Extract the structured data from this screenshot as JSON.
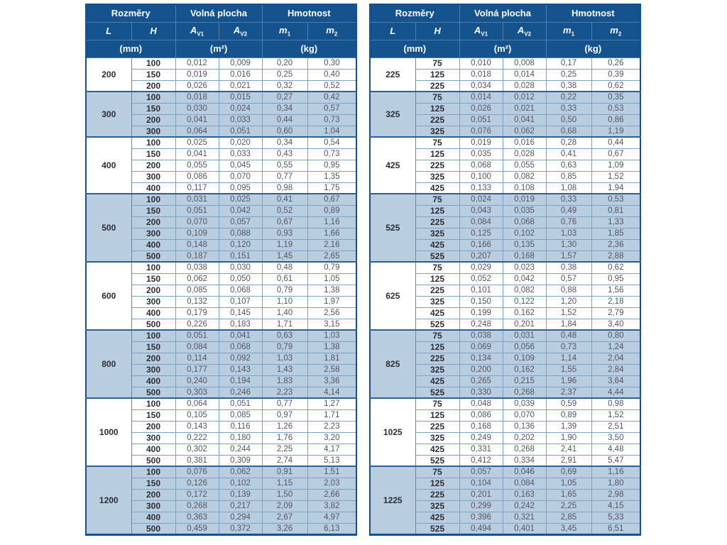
{
  "colors": {
    "header_bg": "#14538e",
    "header_text": "#ffffff",
    "row_blue": "#b9cde0",
    "row_white": "#ffffff",
    "grid_line": "#7da1c3",
    "frame": "#14528d"
  },
  "headers": {
    "rozmery": "Rozměry",
    "volna_plocha": "Volná plocha",
    "hmotnost": "Hmotnost",
    "col_l": "L",
    "col_h": "H",
    "col_av1": {
      "base": "A",
      "sub": "V1"
    },
    "col_av2": {
      "base": "A",
      "sub": "V2"
    },
    "col_m1": {
      "base": "m",
      "sub": "1"
    },
    "col_m2": {
      "base": "m",
      "sub": "2"
    },
    "unit_mm": "(mm)",
    "unit_m2": "(m²)",
    "unit_kg": "(kg)"
  },
  "tables": [
    {
      "groups": [
        {
          "L": "200",
          "rows": [
            {
              "H": "100",
              "av1": "0,012",
              "av2": "0,009",
              "m1": "0,20",
              "m2": "0,30"
            },
            {
              "H": "150",
              "av1": "0,019",
              "av2": "0,016",
              "m1": "0,25",
              "m2": "0,40"
            },
            {
              "H": "200",
              "av1": "0,026",
              "av2": "0,021",
              "m1": "0,32",
              "m2": "0,52"
            }
          ]
        },
        {
          "L": "300",
          "rows": [
            {
              "H": "100",
              "av1": "0,018",
              "av2": "0,015",
              "m1": "0,27",
              "m2": "0,42"
            },
            {
              "H": "150",
              "av1": "0,030",
              "av2": "0,024",
              "m1": "0,34",
              "m2": "0,57"
            },
            {
              "H": "200",
              "av1": "0,041",
              "av2": "0,033",
              "m1": "0,44",
              "m2": "0,73"
            },
            {
              "H": "300",
              "av1": "0,064",
              "av2": "0,051",
              "m1": "0,60",
              "m2": "1,04"
            }
          ]
        },
        {
          "L": "400",
          "rows": [
            {
              "H": "100",
              "av1": "0,025",
              "av2": "0,020",
              "m1": "0,34",
              "m2": "0,54"
            },
            {
              "H": "150",
              "av1": "0,041",
              "av2": "0,033",
              "m1": "0,43",
              "m2": "0,73"
            },
            {
              "H": "200",
              "av1": "0,055",
              "av2": "0,045",
              "m1": "0,55",
              "m2": "0,95"
            },
            {
              "H": "300",
              "av1": "0,086",
              "av2": "0,070",
              "m1": "0,77",
              "m2": "1,35"
            },
            {
              "H": "400",
              "av1": "0,117",
              "av2": "0,095",
              "m1": "0,98",
              "m2": "1,75"
            }
          ]
        },
        {
          "L": "500",
          "rows": [
            {
              "H": "100",
              "av1": "0,031",
              "av2": "0,025",
              "m1": "0,41",
              "m2": "0,67"
            },
            {
              "H": "150",
              "av1": "0,051",
              "av2": "0,042",
              "m1": "0,52",
              "m2": "0,89"
            },
            {
              "H": "200",
              "av1": "0,070",
              "av2": "0,057",
              "m1": "0,67",
              "m2": "1,16"
            },
            {
              "H": "300",
              "av1": "0,109",
              "av2": "0,088",
              "m1": "0,93",
              "m2": "1,66"
            },
            {
              "H": "400",
              "av1": "0,148",
              "av2": "0,120",
              "m1": "1,19",
              "m2": "2,16"
            },
            {
              "H": "500",
              "av1": "0,187",
              "av2": "0,151",
              "m1": "1,45",
              "m2": "2,65"
            }
          ]
        },
        {
          "L": "600",
          "rows": [
            {
              "H": "100",
              "av1": "0,038",
              "av2": "0,030",
              "m1": "0,48",
              "m2": "0,79"
            },
            {
              "H": "150",
              "av1": "0,062",
              "av2": "0,050",
              "m1": "0,61",
              "m2": "1,05"
            },
            {
              "H": "200",
              "av1": "0,085",
              "av2": "0,068",
              "m1": "0,79",
              "m2": "1,38"
            },
            {
              "H": "300",
              "av1": "0,132",
              "av2": "0,107",
              "m1": "1,10",
              "m2": "1,97"
            },
            {
              "H": "400",
              "av1": "0,179",
              "av2": "0,145",
              "m1": "1,40",
              "m2": "2,56"
            },
            {
              "H": "500",
              "av1": "0,226",
              "av2": "0,183",
              "m1": "1,71",
              "m2": "3,15"
            }
          ]
        },
        {
          "L": "800",
          "rows": [
            {
              "H": "100",
              "av1": "0,051",
              "av2": "0,041",
              "m1": "0,63",
              "m2": "1,03"
            },
            {
              "H": "150",
              "av1": "0,084",
              "av2": "0,068",
              "m1": "0,79",
              "m2": "1,38"
            },
            {
              "H": "200",
              "av1": "0,114",
              "av2": "0,092",
              "m1": "1,03",
              "m2": "1,81"
            },
            {
              "H": "300",
              "av1": "0,177",
              "av2": "0,143",
              "m1": "1,43",
              "m2": "2,58"
            },
            {
              "H": "400",
              "av1": "0,240",
              "av2": "0,194",
              "m1": "1,83",
              "m2": "3,36"
            },
            {
              "H": "500",
              "av1": "0,303",
              "av2": "0,246",
              "m1": "2,23",
              "m2": "4,14"
            }
          ]
        },
        {
          "L": "1000",
          "rows": [
            {
              "H": "100",
              "av1": "0,064",
              "av2": "0,051",
              "m1": "0,77",
              "m2": "1,27"
            },
            {
              "H": "150",
              "av1": "0,105",
              "av2": "0,085",
              "m1": "0,97",
              "m2": "1,71"
            },
            {
              "H": "200",
              "av1": "0,143",
              "av2": "0,116",
              "m1": "1,26",
              "m2": "2,23"
            },
            {
              "H": "300",
              "av1": "0,222",
              "av2": "0,180",
              "m1": "1,76",
              "m2": "3,20"
            },
            {
              "H": "400",
              "av1": "0,302",
              "av2": "0,244",
              "m1": "2,25",
              "m2": "4,17"
            },
            {
              "H": "500",
              "av1": "0,381",
              "av2": "0,309",
              "m1": "2,74",
              "m2": "5,13"
            }
          ]
        },
        {
          "L": "1200",
          "rows": [
            {
              "H": "100",
              "av1": "0,076",
              "av2": "0,062",
              "m1": "0,91",
              "m2": "1,51"
            },
            {
              "H": "150",
              "av1": "0,126",
              "av2": "0,102",
              "m1": "1,15",
              "m2": "2,03"
            },
            {
              "H": "200",
              "av1": "0,172",
              "av2": "0,139",
              "m1": "1,50",
              "m2": "2,66"
            },
            {
              "H": "300",
              "av1": "0,268",
              "av2": "0,217",
              "m1": "2,09",
              "m2": "3,82"
            },
            {
              "H": "400",
              "av1": "0,363",
              "av2": "0,294",
              "m1": "2,67",
              "m2": "4,97"
            },
            {
              "H": "500",
              "av1": "0,459",
              "av2": "0,372",
              "m1": "3,26",
              "m2": "6,13"
            }
          ]
        }
      ]
    },
    {
      "groups": [
        {
          "L": "225",
          "rows": [
            {
              "H": "75",
              "av1": "0,010",
              "av2": "0,008",
              "m1": "0,17",
              "m2": "0,26"
            },
            {
              "H": "125",
              "av1": "0,018",
              "av2": "0,014",
              "m1": "0,25",
              "m2": "0,39"
            },
            {
              "H": "225",
              "av1": "0,034",
              "av2": "0,028",
              "m1": "0,38",
              "m2": "0,62"
            }
          ]
        },
        {
          "L": "325",
          "rows": [
            {
              "H": "75",
              "av1": "0,014",
              "av2": "0,012",
              "m1": "0,22",
              "m2": "0,35"
            },
            {
              "H": "125",
              "av1": "0,026",
              "av2": "0,021",
              "m1": "0,33",
              "m2": "0,53"
            },
            {
              "H": "225",
              "av1": "0,051",
              "av2": "0,041",
              "m1": "0,50",
              "m2": "0,86"
            },
            {
              "H": "325",
              "av1": "0,076",
              "av2": "0,062",
              "m1": "0,68",
              "m2": "1,19"
            }
          ]
        },
        {
          "L": "425",
          "rows": [
            {
              "H": "75",
              "av1": "0,019",
              "av2": "0,016",
              "m1": "0,28",
              "m2": "0,44"
            },
            {
              "H": "125",
              "av1": "0,035",
              "av2": "0,028",
              "m1": "0,41",
              "m2": "0,67"
            },
            {
              "H": "225",
              "av1": "0,068",
              "av2": "0,055",
              "m1": "0,63",
              "m2": "1,09"
            },
            {
              "H": "325",
              "av1": "0,100",
              "av2": "0,082",
              "m1": "0,85",
              "m2": "1,52"
            },
            {
              "H": "425",
              "av1": "0,133",
              "av2": "0,108",
              "m1": "1,08",
              "m2": "1,94"
            }
          ]
        },
        {
          "L": "525",
          "rows": [
            {
              "H": "75",
              "av1": "0,024",
              "av2": "0,019",
              "m1": "0,33",
              "m2": "0,53"
            },
            {
              "H": "125",
              "av1": "0,043",
              "av2": "0,035",
              "m1": "0,49",
              "m2": "0,81"
            },
            {
              "H": "225",
              "av1": "0,084",
              "av2": "0,068",
              "m1": "0,76",
              "m2": "1,33"
            },
            {
              "H": "325",
              "av1": "0,125",
              "av2": "0,102",
              "m1": "1,03",
              "m2": "1,85"
            },
            {
              "H": "425",
              "av1": "0,166",
              "av2": "0,135",
              "m1": "1,30",
              "m2": "2,36"
            },
            {
              "H": "525",
              "av1": "0,207",
              "av2": "0,168",
              "m1": "1,57",
              "m2": "2,88"
            }
          ]
        },
        {
          "L": "625",
          "rows": [
            {
              "H": "75",
              "av1": "0,029",
              "av2": "0,023",
              "m1": "0,38",
              "m2": "0,62"
            },
            {
              "H": "125",
              "av1": "0,052",
              "av2": "0,042",
              "m1": "0,57",
              "m2": "0,95"
            },
            {
              "H": "225",
              "av1": "0,101",
              "av2": "0,082",
              "m1": "0,88",
              "m2": "1,56"
            },
            {
              "H": "325",
              "av1": "0,150",
              "av2": "0,122",
              "m1": "1,20",
              "m2": "2,18"
            },
            {
              "H": "425",
              "av1": "0,199",
              "av2": "0,162",
              "m1": "1,52",
              "m2": "2,79"
            },
            {
              "H": "525",
              "av1": "0,248",
              "av2": "0,201",
              "m1": "1,84",
              "m2": "3,40"
            }
          ]
        },
        {
          "L": "825",
          "rows": [
            {
              "H": "75",
              "av1": "0,038",
              "av2": "0,031",
              "m1": "0,48",
              "m2": "0,80"
            },
            {
              "H": "125",
              "av1": "0,069",
              "av2": "0,056",
              "m1": "0,73",
              "m2": "1,24"
            },
            {
              "H": "225",
              "av1": "0,134",
              "av2": "0,109",
              "m1": "1,14",
              "m2": "2,04"
            },
            {
              "H": "325",
              "av1": "0,200",
              "av2": "0,162",
              "m1": "1,55",
              "m2": "2,84"
            },
            {
              "H": "425",
              "av1": "0,265",
              "av2": "0,215",
              "m1": "1,96",
              "m2": "3,64"
            },
            {
              "H": "525",
              "av1": "0,330",
              "av2": "0,268",
              "m1": "2,37",
              "m2": "4,44"
            }
          ]
        },
        {
          "L": "1025",
          "rows": [
            {
              "H": "75",
              "av1": "0,048",
              "av2": "0,039",
              "m1": "0,59",
              "m2": "0,98"
            },
            {
              "H": "125",
              "av1": "0,086",
              "av2": "0,070",
              "m1": "0,89",
              "m2": "1,52"
            },
            {
              "H": "225",
              "av1": "0,168",
              "av2": "0,136",
              "m1": "1,39",
              "m2": "2,51"
            },
            {
              "H": "325",
              "av1": "0,249",
              "av2": "0,202",
              "m1": "1,90",
              "m2": "3,50"
            },
            {
              "H": "425",
              "av1": "0,331",
              "av2": "0,268",
              "m1": "2,41",
              "m2": "4,48"
            },
            {
              "H": "525",
              "av1": "0,412",
              "av2": "0,334",
              "m1": "2,91",
              "m2": "5,47"
            }
          ]
        },
        {
          "L": "1225",
          "rows": [
            {
              "H": "75",
              "av1": "0,057",
              "av2": "0,046",
              "m1": "0,69",
              "m2": "1,16"
            },
            {
              "H": "125",
              "av1": "0,104",
              "av2": "0,084",
              "m1": "1,05",
              "m2": "1,80"
            },
            {
              "H": "225",
              "av1": "0,201",
              "av2": "0,163",
              "m1": "1,65",
              "m2": "2,98"
            },
            {
              "H": "325",
              "av1": "0,299",
              "av2": "0,242",
              "m1": "2,25",
              "m2": "4,15"
            },
            {
              "H": "425",
              "av1": "0,396",
              "av2": "0,321",
              "m1": "2,85",
              "m2": "5,33"
            },
            {
              "H": "525",
              "av1": "0,494",
              "av2": "0,401",
              "m1": "3,45",
              "m2": "6,51"
            }
          ]
        }
      ]
    }
  ]
}
